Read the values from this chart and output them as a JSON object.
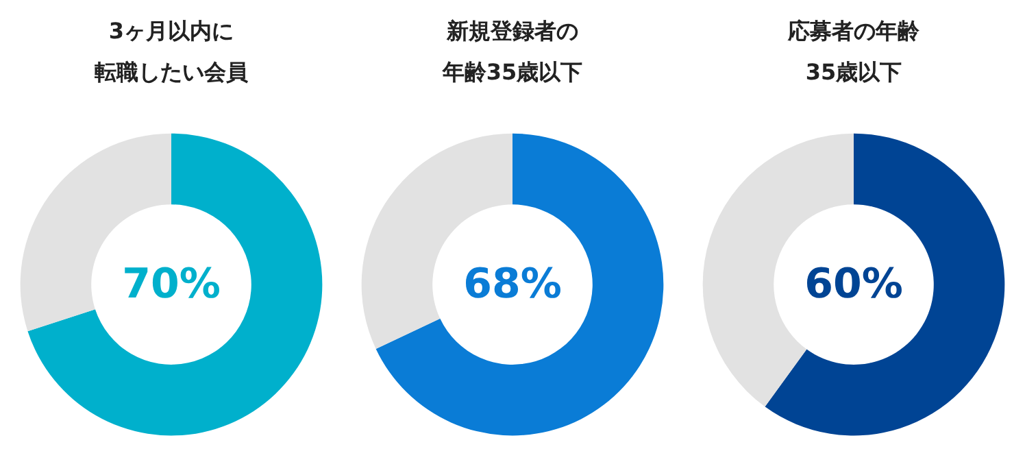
{
  "chart_data": [
    {
      "type": "donut",
      "title": "3ヶ月以内に転職したい会員",
      "categories": [
        null,
        null
      ],
      "values": [
        70,
        30
      ],
      "colors": [
        "#00b0cc",
        "#e2e2e2"
      ],
      "annotations": [
        "70%"
      ]
    },
    {
      "type": "donut",
      "title": "新規登録者の年齢35歳以下",
      "categories": [
        null,
        null
      ],
      "values": [
        68,
        32
      ],
      "colors": [
        "#0a7cd6",
        "#e2e2e2"
      ],
      "annotations": [
        "68%"
      ]
    },
    {
      "type": "donut",
      "title": "応募者の年齢35歳以下",
      "categories": [
        null,
        null
      ],
      "values": [
        60,
        40
      ],
      "colors": [
        "#004494",
        "#e2e2e2"
      ],
      "annotations": [
        "60%"
      ]
    }
  ]
}
